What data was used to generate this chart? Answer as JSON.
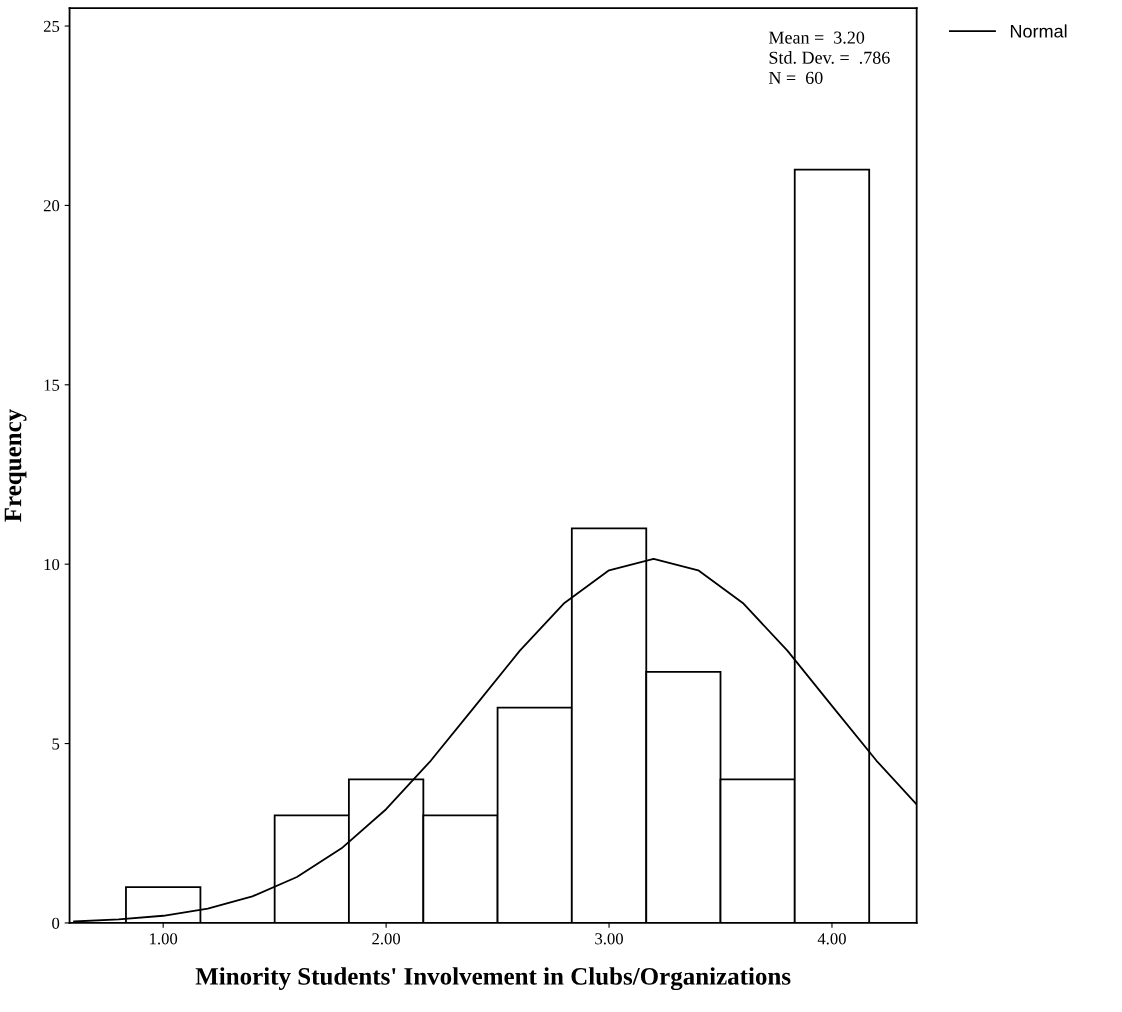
{
  "chart_data": {
    "type": "histogram",
    "xlabel": "Minority Students' Involvement in Clubs/Organizations",
    "ylabel": "Frequency",
    "bins": [
      0.833,
      1.167,
      1.5,
      1.833,
      2.167,
      2.5,
      2.833,
      3.167,
      3.5,
      3.833,
      4.167
    ],
    "values": [
      1,
      0,
      3,
      4,
      3,
      6,
      11,
      7,
      4,
      21
    ],
    "color": "#ffffff",
    "series": [
      {
        "name": "Normal",
        "type": "line",
        "color": "#000000",
        "x": [
          0.6,
          0.8,
          1.0,
          1.2,
          1.4,
          1.6,
          1.8,
          2.0,
          2.2,
          2.4,
          2.6,
          2.8,
          3.0,
          3.2,
          3.4,
          3.6,
          3.8,
          4.0,
          4.2,
          4.38
        ],
        "values": [
          0.04,
          0.1,
          0.2,
          0.4,
          0.74,
          1.28,
          2.08,
          3.17,
          4.52,
          6.05,
          7.59,
          8.92,
          9.83,
          10.15,
          9.83,
          8.92,
          7.59,
          6.05,
          4.52,
          3.3
        ]
      }
    ],
    "annotations": [
      "Mean =  3.20",
      "Std. Dev. =  .786",
      "N =  60"
    ],
    "xlim": [
      0.58,
      4.38
    ],
    "ylim": [
      0,
      25.5
    ],
    "xticks": [
      {
        "value": 1,
        "label": "1.00"
      },
      {
        "value": 2,
        "label": "2.00"
      },
      {
        "value": 3,
        "label": "3.00"
      },
      {
        "value": 4,
        "label": "4.00"
      }
    ],
    "yticks": [
      0,
      5,
      10,
      15,
      20,
      25
    ],
    "grid": false,
    "legend": "top right",
    "line_style": "solid",
    "marker": "none"
  }
}
